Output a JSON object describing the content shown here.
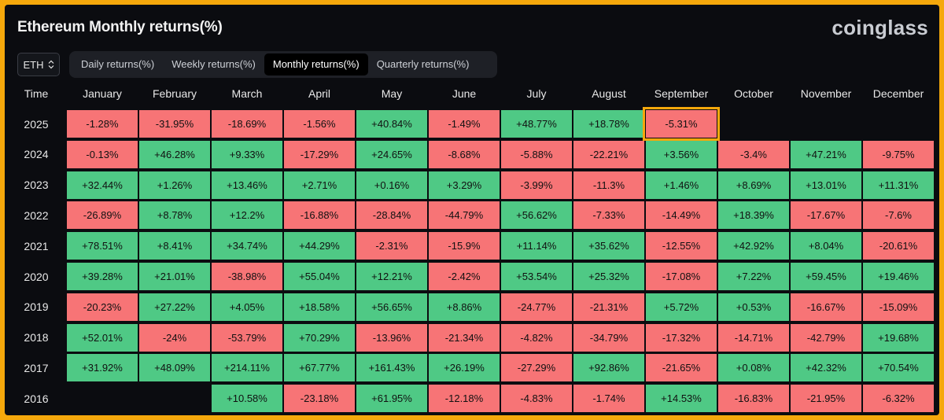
{
  "header": {
    "title": "Ethereum Monthly returns(%)",
    "logo_text": "coinglass"
  },
  "symbol_select": {
    "value": "ETH"
  },
  "tabs": [
    {
      "label": "Daily returns(%)",
      "active": false
    },
    {
      "label": "Weekly returns(%)",
      "active": false
    },
    {
      "label": "Monthly returns(%)",
      "active": true
    },
    {
      "label": "Quarterly returns(%)",
      "active": false
    }
  ],
  "table": {
    "time_header": "Time",
    "months": [
      "January",
      "February",
      "March",
      "April",
      "May",
      "June",
      "July",
      "August",
      "September",
      "October",
      "November",
      "December"
    ],
    "rows": [
      {
        "year": "2025",
        "values": [
          "-1.28%",
          "-31.95%",
          "-18.69%",
          "-1.56%",
          "+40.84%",
          "-1.49%",
          "+48.77%",
          "+18.78%",
          "-5.31%",
          null,
          null,
          null
        ]
      },
      {
        "year": "2024",
        "values": [
          "-0.13%",
          "+46.28%",
          "+9.33%",
          "-17.29%",
          "+24.65%",
          "-8.68%",
          "-5.88%",
          "-22.21%",
          "+3.56%",
          "-3.4%",
          "+47.21%",
          "-9.75%"
        ]
      },
      {
        "year": "2023",
        "values": [
          "+32.44%",
          "+1.26%",
          "+13.46%",
          "+2.71%",
          "+0.16%",
          "+3.29%",
          "-3.99%",
          "-11.3%",
          "+1.46%",
          "+8.69%",
          "+13.01%",
          "+11.31%"
        ]
      },
      {
        "year": "2022",
        "values": [
          "-26.89%",
          "+8.78%",
          "+12.2%",
          "-16.88%",
          "-28.84%",
          "-44.79%",
          "+56.62%",
          "-7.33%",
          "-14.49%",
          "+18.39%",
          "-17.67%",
          "-7.6%"
        ]
      },
      {
        "year": "2021",
        "values": [
          "+78.51%",
          "+8.41%",
          "+34.74%",
          "+44.29%",
          "-2.31%",
          "-15.9%",
          "+11.14%",
          "+35.62%",
          "-12.55%",
          "+42.92%",
          "+8.04%",
          "-20.61%"
        ]
      },
      {
        "year": "2020",
        "values": [
          "+39.28%",
          "+21.01%",
          "-38.98%",
          "+55.04%",
          "+12.21%",
          "-2.42%",
          "+53.54%",
          "+25.32%",
          "-17.08%",
          "+7.22%",
          "+59.45%",
          "+19.46%"
        ]
      },
      {
        "year": "2019",
        "values": [
          "-20.23%",
          "+27.22%",
          "+4.05%",
          "+18.58%",
          "+56.65%",
          "+8.86%",
          "-24.77%",
          "-21.31%",
          "+5.72%",
          "+0.53%",
          "-16.67%",
          "-15.09%"
        ]
      },
      {
        "year": "2018",
        "values": [
          "+52.01%",
          "-24%",
          "-53.79%",
          "+70.29%",
          "-13.96%",
          "-21.34%",
          "-4.82%",
          "-34.79%",
          "-17.32%",
          "-14.71%",
          "-42.79%",
          "+19.68%"
        ]
      },
      {
        "year": "2017",
        "values": [
          "+31.92%",
          "+48.09%",
          "+214.11%",
          "+67.77%",
          "+161.43%",
          "+26.19%",
          "-27.29%",
          "+92.86%",
          "-21.65%",
          "+0.08%",
          "+42.32%",
          "+70.54%"
        ]
      },
      {
        "year": "2016",
        "values": [
          null,
          null,
          "+10.58%",
          "-23.18%",
          "+61.95%",
          "-12.18%",
          "-4.83%",
          "-1.74%",
          "+14.53%",
          "-16.83%",
          "-21.95%",
          "-6.32%"
        ]
      }
    ],
    "highlighted": {
      "year": "2025",
      "month": "September"
    }
  },
  "colors": {
    "positive": "#4fc985",
    "negative": "#f77476",
    "highlight_border": "#f5a80b",
    "frame_border": "#f5a80b",
    "background": "#0b0c10"
  }
}
